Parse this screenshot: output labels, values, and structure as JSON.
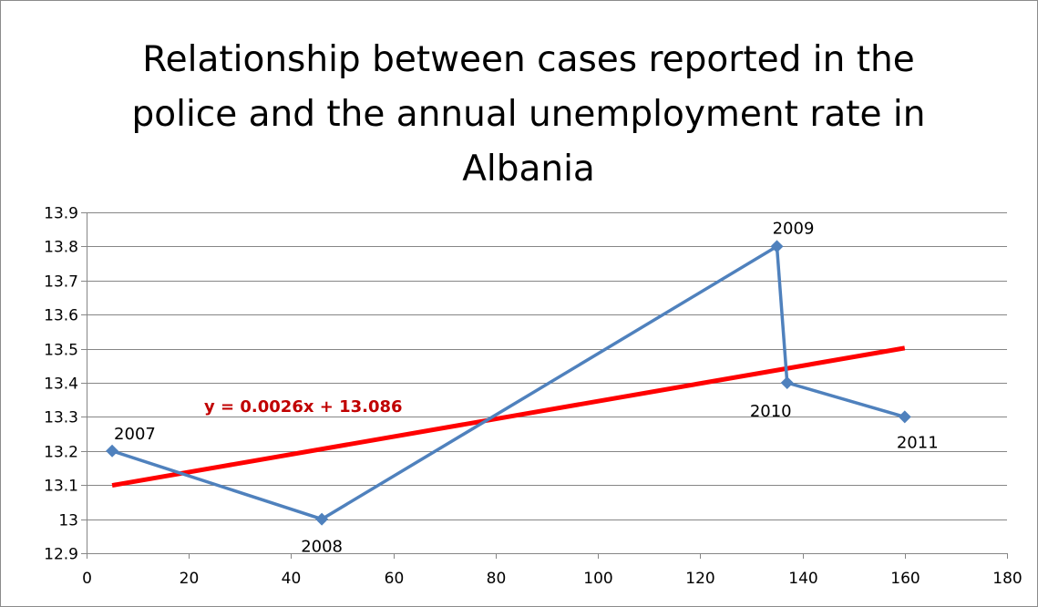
{
  "chart_data": {
    "type": "scatter",
    "title_lines": [
      "Relationship between cases reported in the",
      "police and the annual unemployment rate in",
      "Albania"
    ],
    "xlim": [
      0,
      180
    ],
    "ylim": [
      12.9,
      13.9
    ],
    "x_ticks": [
      0,
      20,
      40,
      60,
      80,
      100,
      120,
      140,
      160,
      180
    ],
    "x_tick_labels": [
      "0",
      "20",
      "40",
      "60",
      "80",
      "100",
      "120",
      "140",
      "160",
      "180"
    ],
    "y_ticks": [
      12.9,
      13.0,
      13.1,
      13.2,
      13.3,
      13.4,
      13.5,
      13.6,
      13.7,
      13.8,
      13.9
    ],
    "y_tick_labels": [
      "12.9",
      "13",
      "13.1",
      "13.2",
      "13.3",
      "13.4",
      "13.5",
      "13.6",
      "13.7",
      "13.8",
      "13.9"
    ],
    "grid": "horizontal",
    "series": [
      {
        "color": "#4f81bd",
        "marker": "diamond",
        "points": [
          {
            "x": 5,
            "y": 13.2,
            "label": "2007"
          },
          {
            "x": 46,
            "y": 13.0,
            "label": "2008"
          },
          {
            "x": 135,
            "y": 13.8,
            "label": "2009"
          },
          {
            "x": 137,
            "y": 13.4,
            "label": "2010"
          },
          {
            "x": 160,
            "y": 13.3,
            "label": "2011"
          }
        ]
      }
    ],
    "trendline": {
      "slope": 0.0026,
      "intercept": 13.086,
      "x_range": [
        5,
        160
      ],
      "color": "#ff0000",
      "equation": "y = 0.0026x + 13.086",
      "equation_color": "#c00000"
    }
  }
}
